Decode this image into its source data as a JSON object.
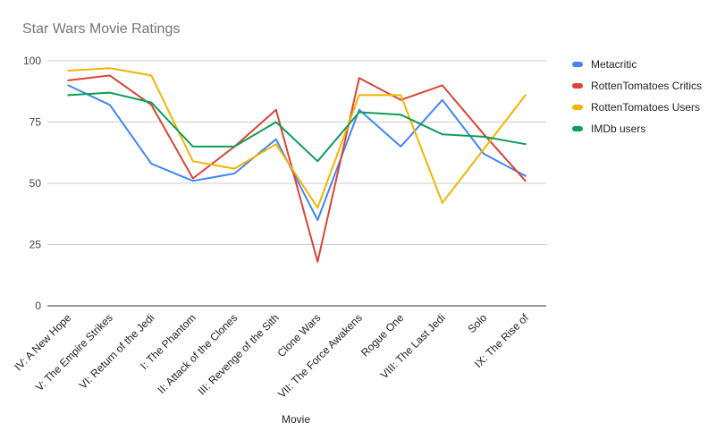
{
  "chart_data": {
    "type": "line",
    "title": "Star Wars Movie Ratings",
    "xlabel": "Movie",
    "ylabel": "",
    "ylim": [
      0,
      100
    ],
    "yticks": [
      0,
      25,
      50,
      75,
      100
    ],
    "grid": true,
    "legend_position": "right",
    "categories": [
      "IV: A New Hope",
      "V: The Empire Strikes",
      "VI: Return of the Jedi",
      "I: The Phantom",
      "II: Attack of the Clones",
      "III: Revenge of the Sith",
      "Clone Wars",
      "VII: The Force Awakens",
      "Rogue One",
      "VIII: The Last Jedi",
      "Solo",
      "IX: The Rise of"
    ],
    "series": [
      {
        "name": "Metacritic",
        "color": "#4285f4",
        "values": [
          90,
          82,
          58,
          51,
          54,
          68,
          35,
          80,
          65,
          84,
          62,
          53
        ]
      },
      {
        "name": "RottenTomatoes Critics",
        "color": "#db4437",
        "values": [
          92,
          94,
          82,
          52,
          65,
          80,
          18,
          93,
          84,
          90,
          70,
          51
        ]
      },
      {
        "name": "RottenTomatoes Users",
        "color": "#f4b400",
        "values": [
          96,
          97,
          94,
          59,
          56,
          66,
          40,
          86,
          86,
          42,
          64,
          86
        ]
      },
      {
        "name": "IMDb users",
        "color": "#0f9d58",
        "values": [
          86,
          87,
          83,
          65,
          65,
          75,
          59,
          79,
          78,
          70,
          69,
          66
        ]
      }
    ]
  }
}
